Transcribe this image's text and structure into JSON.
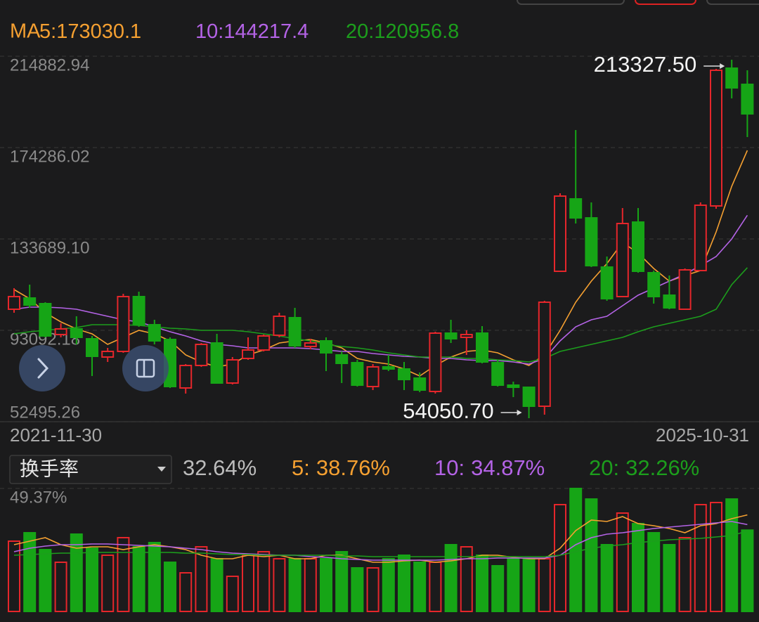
{
  "chart_data": [
    {
      "type": "candlestick",
      "ma_prefix": "MA",
      "categories": [
        "2021-11-30",
        null,
        null,
        null,
        null,
        null,
        null,
        null,
        null,
        null,
        null,
        null,
        null,
        null,
        null,
        null,
        null,
        null,
        null,
        null,
        null,
        null,
        null,
        null,
        null,
        null,
        null,
        null,
        null,
        null,
        null,
        null,
        null,
        null,
        null,
        null,
        null,
        null,
        null,
        null,
        null,
        null,
        null,
        null,
        null,
        null,
        null,
        "2025-10-31"
      ],
      "open": [
        102460,
        107456,
        104958,
        91218,
        93716,
        89344,
        81225,
        83723,
        108081,
        95590,
        89032,
        67484,
        77477,
        87470,
        69670,
        80600,
        84348,
        90905,
        98712,
        85909,
        88407,
        82162,
        78727,
        68109,
        76853,
        75916,
        71856,
        65923,
        91842,
        89969,
        91842,
        78727,
        68734,
        67797,
        59365,
        119323,
        151488,
        143056,
        121197,
        108081,
        141183,
        118698,
        108705,
        102460,
        119635,
        148365,
        209572,
        202389
      ],
      "high": [
        111828,
        113390,
        105583,
        96214,
        99337,
        90593,
        85284,
        109330,
        110267,
        97776,
        89969,
        78102,
        87470,
        91530,
        81225,
        89969,
        91218,
        100898,
        103084,
        89344,
        89969,
        83723,
        79976,
        78102,
        82162,
        79039,
        74355,
        92467,
        97776,
        93091,
        94965,
        79976,
        70295,
        68109,
        106207,
        153986,
        182091,
        149926,
        125881,
        147428,
        147428,
        119635,
        117449,
        120572,
        149926,
        209260,
        213327.5,
        208635
      ],
      "low": [
        100898,
        103084,
        89969,
        89969,
        86846,
        72793,
        79039,
        83098,
        94653,
        86846,
        67484,
        64986,
        76853,
        69358,
        69046,
        79976,
        83723,
        89969,
        85284,
        84660,
        74979,
        69670,
        68109,
        66548,
        74979,
        66548,
        65611,
        64986,
        87470,
        82162,
        78414,
        68109,
        63425,
        54050.7,
        55618,
        119011,
        140558,
        121197,
        106207,
        107769,
        118698,
        104958,
        102460,
        102148,
        119323,
        147116,
        196144,
        178968
      ],
      "close": [
        108081,
        104333,
        90593,
        93716,
        89969,
        81537,
        83723,
        108081,
        95590,
        88407,
        68109,
        77477,
        86846,
        69670,
        79976,
        84348,
        90593,
        99337,
        86221,
        87470,
        83098,
        78414,
        68734,
        76853,
        75916,
        71232,
        66548,
        91842,
        89344,
        91218,
        79039,
        68734,
        67797,
        59365,
        105583,
        152737,
        143056,
        121821,
        107144,
        140558,
        119323,
        108081,
        103084,
        119947,
        148677,
        208635,
        200828,
        189274
      ],
      "up_color": "#e5262b",
      "down_color": "#16a516",
      "series": [
        {
          "name": "5:",
          "color": "#f5a031",
          "values": [
            111200,
            107140,
            100900,
            96840,
            93720,
            91530,
            86850,
            89970,
            93090,
            91530,
            88410,
            82160,
            79040,
            76850,
            78100,
            82160,
            84350,
            87470,
            88410,
            89030,
            87470,
            85280,
            80600,
            79040,
            78100,
            75920,
            72790,
            77480,
            81230,
            83720,
            84350,
            83100,
            79980,
            77480,
            82160,
            93090,
            105580,
            114950,
            122760,
            132130,
            127440,
            120570,
            114950,
            117450,
            119640,
            136810,
            157110,
            173030.1
          ]
        },
        {
          "name": "10:",
          "color": "#b463e6",
          "values": [
            102460,
            103400,
            103400,
            103080,
            102460,
            100900,
            99340,
            97780,
            96840,
            94650,
            92470,
            90590,
            88410,
            86850,
            86220,
            85280,
            85280,
            85280,
            85280,
            84970,
            84350,
            83720,
            83720,
            82790,
            82160,
            81540,
            81230,
            80600,
            80600,
            79980,
            79660,
            79660,
            79040,
            78100,
            80600,
            88410,
            94650,
            97780,
            99340,
            104020,
            108710,
            111830,
            114950,
            118070,
            121820,
            125880,
            133690,
            144217.4
          ]
        },
        {
          "name": "20:",
          "color": "#1c9e1c",
          "values": [
            91530,
            92470,
            93090,
            93720,
            94340,
            95590,
            95590,
            95590,
            95280,
            94650,
            94030,
            93720,
            93090,
            93090,
            93090,
            92470,
            91530,
            90590,
            89340,
            88410,
            86850,
            85910,
            85280,
            84350,
            83100,
            82160,
            81230,
            81230,
            81230,
            80600,
            80600,
            79980,
            79660,
            79040,
            80600,
            83720,
            85280,
            86850,
            88410,
            89970,
            92470,
            94650,
            96210,
            97780,
            99340,
            102460,
            113390,
            120956.8
          ]
        }
      ],
      "ylim": [
        52495.26,
        214882.94
      ],
      "yticks": [
        214882.94,
        174286.02,
        {
          "value": 133689.1,
          "label": "133689.10"
        },
        93092.18,
        52495.26
      ],
      "grid": true,
      "annotations": [
        {
          "value": 213327.5,
          "label": "213327.50"
        },
        {
          "value": 54050.7,
          "label": "54050.70"
        }
      ]
    },
    {
      "type": "bar",
      "indicator": "换手率",
      "values": [
        28.21,
        31.59,
        24.82,
        19.75,
        31.03,
        25.39,
        22.57,
        29.62,
        25.95,
        27.64,
        19.75,
        15.51,
        25.95,
        21.16,
        14.1,
        22.57,
        23.98,
        21.16,
        21.16,
        21.16,
        21.16,
        23.98,
        17.49,
        17.49,
        21.16,
        22.57,
        19.75,
        19.75,
        26.8,
        25.95,
        22.57,
        18.34,
        21.16,
        21.16,
        21.16,
        42.88,
        49.37,
        45.13,
        26.8,
        39.49,
        35.26,
        31.59,
        26.8,
        29.62,
        42.88,
        43.72,
        45.13,
        32.64
      ],
      "latest_label": "32.64%",
      "series": [
        {
          "name": "5:",
          "color": "#f5a031",
          "latest_label": "38.76%",
          "values": [
            26.8,
            28.21,
            29.62,
            26.8,
            25.39,
            25.95,
            25.95,
            24.82,
            25.95,
            26.8,
            25.95,
            24.82,
            22.57,
            21.16,
            21.16,
            22.57,
            22.0,
            22.57,
            21.16,
            21.16,
            22.57,
            22.57,
            21.16,
            19.75,
            19.75,
            20.31,
            20.59,
            19.75,
            20.31,
            21.16,
            22.57,
            22.57,
            21.72,
            21.16,
            21.16,
            25.39,
            32.44,
            36.67,
            36.11,
            38.08,
            35.26,
            34.41,
            33.29,
            31.59,
            34.41,
            35.26,
            37.24,
            38.76
          ]
        },
        {
          "name": "10:",
          "color": "#b463e6",
          "latest_label": "34.87%",
          "values": [
            23.98,
            25.39,
            26.23,
            26.8,
            26.8,
            27.08,
            27.08,
            26.8,
            26.52,
            26.23,
            25.95,
            25.39,
            24.82,
            23.98,
            23.41,
            23.13,
            22.85,
            22.57,
            22.57,
            22.0,
            21.72,
            21.16,
            20.87,
            20.59,
            20.59,
            20.59,
            20.59,
            20.59,
            20.87,
            21.16,
            21.16,
            21.44,
            21.44,
            21.44,
            21.44,
            22.57,
            26.8,
            29.62,
            31.03,
            31.59,
            32.44,
            33.29,
            33.85,
            34.41,
            34.98,
            35.54,
            36.11,
            34.87
          ]
        },
        {
          "name": "20:",
          "color": "#1c9e1c",
          "latest_label": "32.26%",
          "values": [
            22.57,
            22.85,
            23.13,
            23.41,
            23.41,
            23.7,
            23.7,
            23.7,
            23.7,
            23.7,
            23.7,
            23.41,
            23.41,
            23.13,
            22.85,
            22.85,
            22.57,
            22.57,
            22.57,
            22.57,
            22.57,
            22.28,
            22.28,
            22.0,
            22.0,
            22.0,
            22.0,
            22.0,
            22.0,
            22.0,
            22.0,
            22.0,
            22.0,
            22.0,
            22.0,
            22.57,
            23.98,
            25.39,
            26.23,
            26.8,
            27.64,
            28.21,
            28.77,
            29.05,
            29.34,
            29.9,
            30.47,
            32.26
          ]
        }
      ],
      "ylim": [
        0,
        49.37
      ],
      "yticks": [
        {
          "value": 49.37,
          "label": "49.37%"
        }
      ],
      "grid": true
    }
  ]
}
